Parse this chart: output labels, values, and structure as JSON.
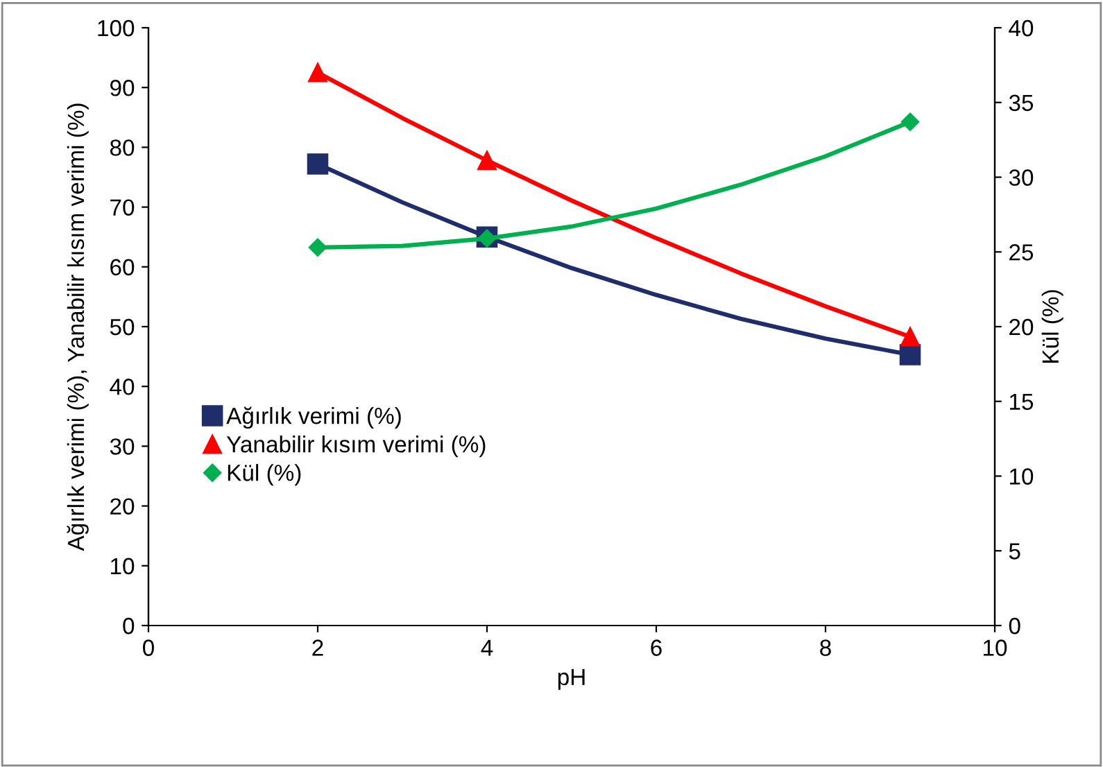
{
  "chart_data": {
    "type": "scatter",
    "xlabel": "pH",
    "ylabel": "Ağırlık verimi (%), Yanabilir kısım verimi (%)",
    "y2label": "Kül (%)",
    "xlim": [
      0,
      10
    ],
    "xticks": [
      0,
      2,
      4,
      6,
      8,
      10
    ],
    "ylim": [
      0,
      100
    ],
    "yticks": [
      0,
      10,
      20,
      30,
      40,
      50,
      60,
      70,
      80,
      90,
      100
    ],
    "y2lim": [
      0,
      40
    ],
    "y2ticks": [
      0,
      5,
      10,
      15,
      20,
      25,
      30,
      35,
      40
    ],
    "grid": false,
    "legend": "left",
    "series": [
      {
        "type": "line",
        "color": "#1f2d6b",
        "x": [
          2,
          3,
          4,
          5,
          6,
          7,
          8,
          9
        ],
        "values": [
          77.2,
          70.8,
          65.0,
          59.8,
          55.3,
          51.3,
          48.0,
          45.3
        ]
      },
      {
        "type": "line",
        "color": "#ff0000",
        "x": [
          2,
          3,
          4,
          5,
          6,
          7,
          8,
          9
        ],
        "values": [
          92.5,
          84.9,
          77.8,
          71.1,
          64.8,
          58.9,
          53.4,
          48.3
        ]
      },
      {
        "type": "line",
        "color": "#00b050",
        "axis": "y2",
        "x": [
          2,
          3,
          4,
          5,
          6,
          7,
          8,
          9
        ],
        "values": [
          25.3,
          25.4,
          25.9,
          26.7,
          27.9,
          29.5,
          31.4,
          33.7
        ]
      },
      {
        "name": "Ağırlık verimi (%)",
        "color": "#1f2d6b",
        "marker": "square",
        "x": [
          2,
          4,
          9
        ],
        "values": [
          77.2,
          65.0,
          45.3
        ]
      },
      {
        "name": "Yanabilir kısım verimi (%)",
        "color": "#ff0000",
        "marker": "triangle",
        "x": [
          2,
          4,
          9
        ],
        "values": [
          92.5,
          77.8,
          48.3
        ]
      },
      {
        "name": "Kül (%)",
        "color": "#00b050",
        "marker": "diamond",
        "axis": "y2",
        "x": [
          2,
          4,
          9
        ],
        "values": [
          25.3,
          25.9,
          33.7
        ]
      }
    ]
  }
}
